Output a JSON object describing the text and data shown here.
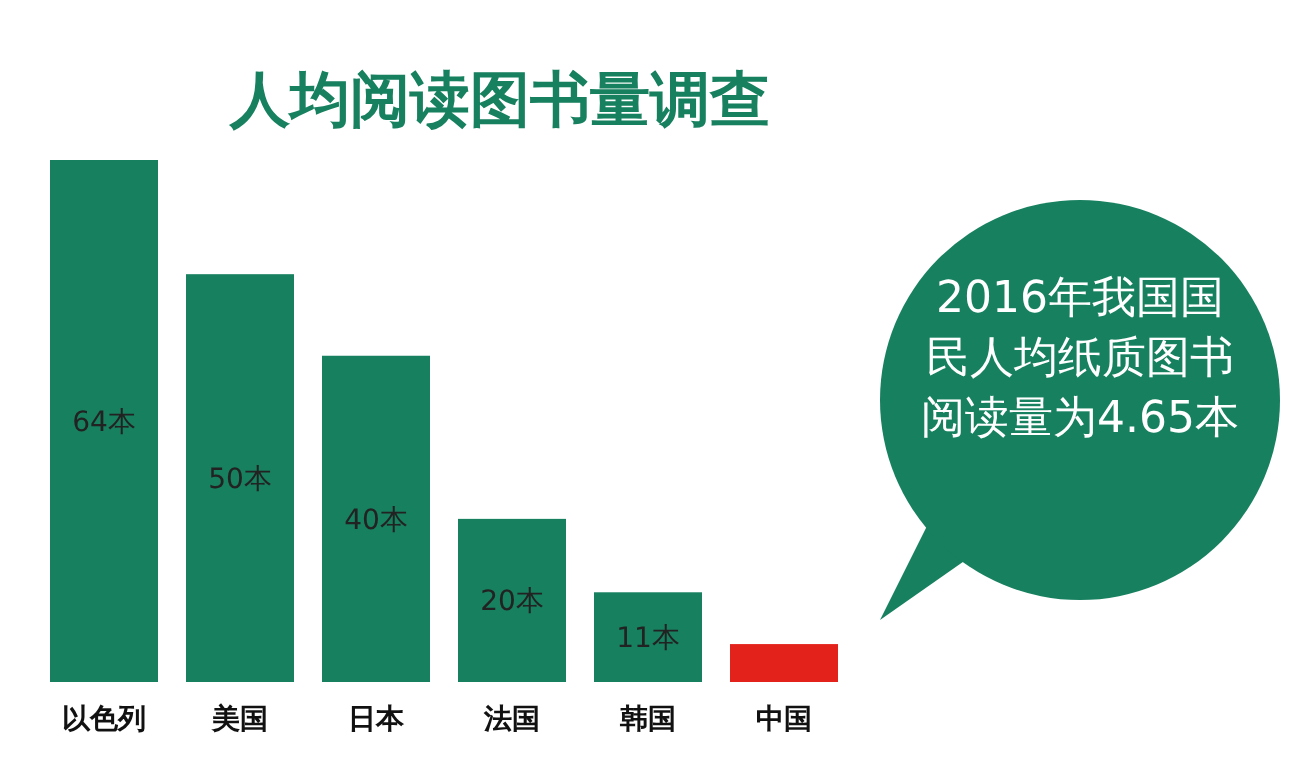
{
  "chart_data": {
    "type": "bar",
    "title": "人均阅读图书量调查",
    "categories": [
      "以色列",
      "美国",
      "日本",
      "法国",
      "韩国",
      "中国"
    ],
    "values": [
      64,
      50,
      40,
      20,
      11,
      4.65
    ],
    "colors": [
      "#17805f",
      "#17805f",
      "#17805f",
      "#17805f",
      "#17805f",
      "#e3231b"
    ],
    "value_labels": [
      "64本",
      "50本",
      "40本",
      "20本",
      "11本",
      null
    ],
    "annotations": [
      "2016年我国国民人均纸质图书阅读量为4.65本"
    ]
  }
}
